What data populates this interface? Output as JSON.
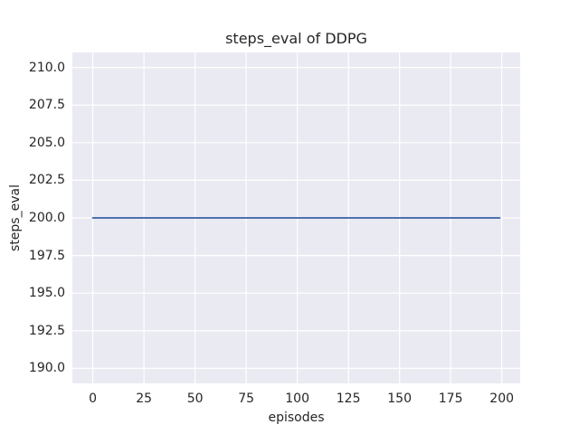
{
  "chart_data": {
    "type": "line",
    "title": "steps_eval of DDPG",
    "xlabel": "episodes",
    "ylabel": "steps_eval",
    "x_ticks": [
      0,
      25,
      50,
      75,
      100,
      125,
      150,
      175,
      200
    ],
    "x_tick_labels": [
      "0",
      "25",
      "50",
      "75",
      "100",
      "125",
      "150",
      "175",
      "200"
    ],
    "y_ticks": [
      190.0,
      192.5,
      195.0,
      197.5,
      200.0,
      202.5,
      205.0,
      207.5,
      210.0
    ],
    "y_tick_labels": [
      "190.0",
      "192.5",
      "195.0",
      "197.5",
      "200.0",
      "202.5",
      "205.0",
      "207.5",
      "210.0"
    ],
    "xlim": [
      -10,
      209
    ],
    "ylim": [
      189,
      211
    ],
    "grid": true,
    "legend": false,
    "series": [
      {
        "name": "steps_eval",
        "x": [
          0,
          199
        ],
        "y": [
          200,
          200
        ],
        "constant_value": 200,
        "color": "#4c72b0",
        "linewidth": 2
      }
    ],
    "style": {
      "figure_background": "#ffffff",
      "plot_background": "#eaeaf2",
      "grid_color": "#ffffff",
      "text_color": "#262626"
    }
  }
}
